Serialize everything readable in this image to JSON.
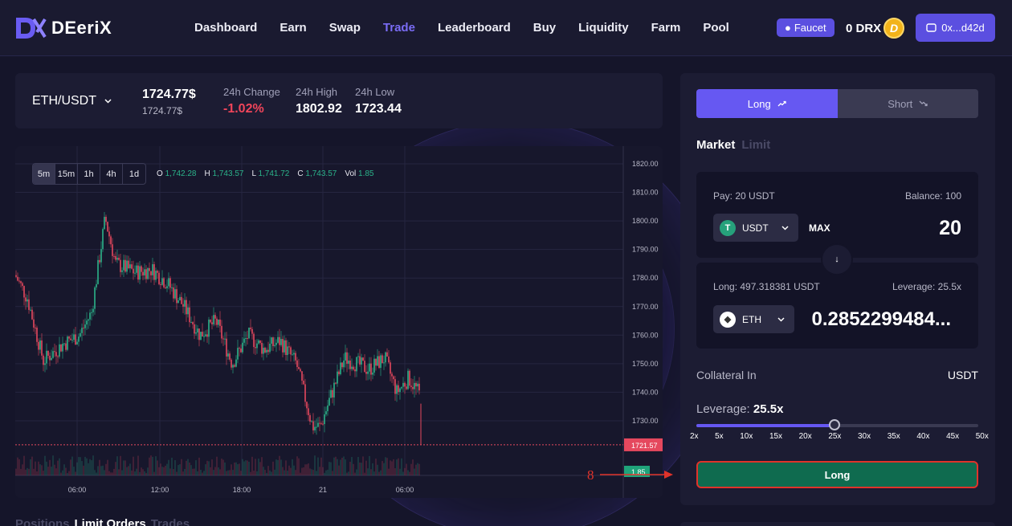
{
  "header": {
    "logo_text": "DEeriX",
    "nav": [
      "Dashboard",
      "Earn",
      "Swap",
      "Trade",
      "Leaderboard",
      "Buy",
      "Liquidity",
      "Farm",
      "Pool"
    ],
    "active_nav": "Trade",
    "faucet_label": "Faucet",
    "balance": "0 DRX",
    "coin_letter": "D",
    "wallet_address": "0x...d42d"
  },
  "ticker": {
    "pair": "ETH/USDT",
    "price": "1724.77$",
    "price_sub": "1724.77$",
    "change_label": "24h Change",
    "change_value": "-1.02%",
    "high_label": "24h High",
    "high_value": "1802.92",
    "low_label": "24h Low",
    "low_value": "1723.44"
  },
  "chart": {
    "timeframes": [
      "5m",
      "15m",
      "1h",
      "4h",
      "1d"
    ],
    "active_timeframe": "5m",
    "ohlc": {
      "o_label": "O",
      "o": "1,742.28",
      "h_label": "H",
      "h": "1,743.57",
      "l_label": "L",
      "l": "1,741.72",
      "c_label": "C",
      "c": "1,743.57",
      "vol_label": "Vol",
      "vol": "1.85"
    },
    "price_ticks": [
      "1820.00",
      "1810.00",
      "1800.00",
      "1790.00",
      "1780.00",
      "1770.00",
      "1760.00",
      "1750.00",
      "1740.00",
      "1730.00"
    ],
    "time_ticks": [
      "06:00",
      "12:00",
      "18:00",
      "21",
      "06:00"
    ],
    "current_price_tag": "1721.57",
    "volume_tag": "1.85",
    "up_color": "#2bb38a",
    "down_color": "#e5485e"
  },
  "bottom_tabs": [
    "Positions",
    "Limit Orders",
    "Trades"
  ],
  "active_bottom_tab": "Limit Orders",
  "order_panel": {
    "long_label": "Long",
    "short_label": "Short",
    "order_types": [
      "Market",
      "Limit"
    ],
    "active_order_type": "Market",
    "pay_label": "Pay: 20 USDT",
    "balance_label": "Balance: 100",
    "pay_token": "USDT",
    "max_label": "MAX",
    "pay_amount": "20",
    "receive_label": "Long: 497.318381 USDT",
    "leverage_info": "Leverage: 25.5x",
    "receive_token": "ETH",
    "receive_amount": "0.2852299484...",
    "collateral_label": "Collateral In",
    "collateral_value": "USDT",
    "leverage_title": "Leverage:",
    "leverage_value": "25.5x",
    "leverage_level": 25.5,
    "leverage_max": 50,
    "leverage_ticks": [
      "2x",
      "5x",
      "10x",
      "15x",
      "20x",
      "25x",
      "30x",
      "35x",
      "40x",
      "45x",
      "50x"
    ],
    "submit_label": "Long",
    "accent_color": "#6658f2"
  },
  "annotation": {
    "step_number": "8",
    "color": "#e0332a"
  }
}
